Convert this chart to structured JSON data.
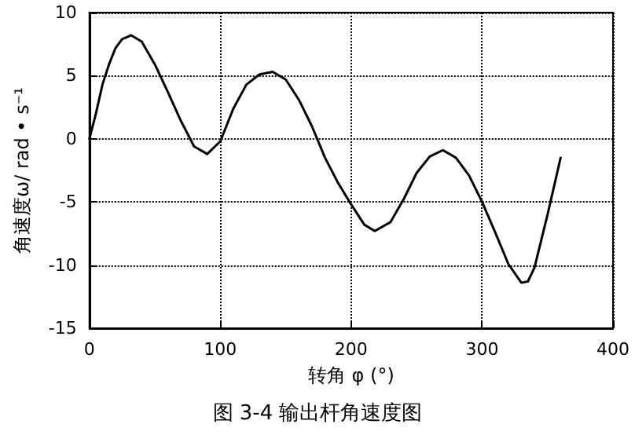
{
  "chart_data": {
    "type": "line",
    "title": "图 3-4 输出杆角速度图",
    "xlabel": "转角 φ (°)",
    "ylabel": "角速度ω/ rad • s⁻¹",
    "x": [
      0,
      5,
      10,
      15,
      20,
      25,
      32,
      40,
      50,
      60,
      70,
      80,
      90,
      100,
      110,
      120,
      130,
      140,
      150,
      160,
      170,
      180,
      190,
      200,
      210,
      218,
      230,
      240,
      250,
      260,
      270,
      280,
      290,
      300,
      310,
      320,
      330,
      335,
      340,
      350,
      360
    ],
    "series": [
      {
        "color": "#000000",
        "values": [
          0,
          2.0,
          4.3,
          5.9,
          7.2,
          7.9,
          8.2,
          7.7,
          5.9,
          3.7,
          1.4,
          -0.6,
          -1.2,
          -0.2,
          2.4,
          4.3,
          5.1,
          5.3,
          4.7,
          3.1,
          1.0,
          -1.5,
          -3.5,
          -5.2,
          -6.8,
          -7.3,
          -6.6,
          -4.8,
          -2.7,
          -1.4,
          -0.9,
          -1.5,
          -2.9,
          -5.0,
          -7.4,
          -9.9,
          -11.4,
          -11.3,
          -10.2,
          -6.0,
          -1.5
        ]
      }
    ],
    "xlim": [
      0,
      400
    ],
    "xticks": [
      0,
      100,
      200,
      300,
      400
    ],
    "ylim": [
      -15,
      10
    ],
    "yticks": [
      -15,
      -10,
      -5,
      0,
      5,
      10
    ],
    "grid": true,
    "line_style": "solid",
    "marker": "none"
  }
}
